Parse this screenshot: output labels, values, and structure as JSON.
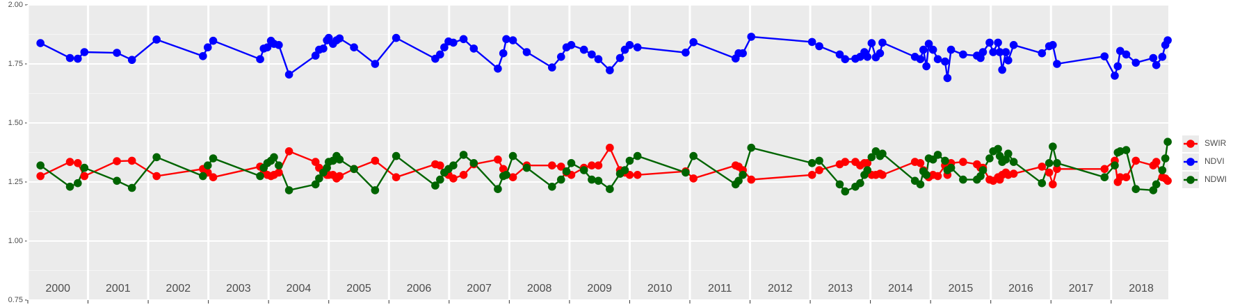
{
  "chart_data": {
    "type": "line",
    "x": [
      2000.21,
      2000.7,
      2000.83,
      2000.94,
      2001.48,
      2001.73,
      2002.14,
      2002.91,
      2002.99,
      2003.08,
      2003.86,
      2003.92,
      2003.98,
      2004.04,
      2004.09,
      2004.17,
      2004.34,
      2004.78,
      2004.84,
      2004.91,
      2004.97,
      2005.0,
      2005.07,
      2005.13,
      2005.18,
      2005.42,
      2005.77,
      2006.12,
      2006.77,
      2006.85,
      2006.92,
      2006.99,
      2007.07,
      2007.24,
      2007.41,
      2007.81,
      2007.9,
      2007.95,
      2008.06,
      2008.29,
      2008.71,
      2008.86,
      2008.95,
      2009.03,
      2009.24,
      2009.37,
      2009.48,
      2009.67,
      2009.84,
      2009.92,
      2010.0,
      2010.13,
      2010.93,
      2011.06,
      2011.76,
      2011.81,
      2011.88,
      2012.02,
      2013.03,
      2013.15,
      2013.49,
      2013.58,
      2013.75,
      2013.83,
      2013.9,
      2013.95,
      2014.02,
      2014.09,
      2014.16,
      2014.2,
      2014.74,
      2014.83,
      2014.88,
      2014.93,
      2014.97,
      2015.04,
      2015.12,
      2015.24,
      2015.28,
      2015.34,
      2015.54,
      2015.77,
      2015.83,
      2015.87,
      2015.98,
      2016.04,
      2016.12,
      2016.15,
      2016.19,
      2016.25,
      2016.29,
      2016.38,
      2016.85,
      2016.97,
      2017.03,
      2017.1,
      2017.89,
      2018.06,
      2018.11,
      2018.15,
      2018.25,
      2018.41,
      2018.7,
      2018.75,
      2018.85,
      2018.9,
      2018.94
    ],
    "series": [
      {
        "name": "SWIR",
        "color": "#ff0000",
        "values": [
          1.275,
          1.335,
          1.33,
          1.275,
          1.338,
          1.34,
          1.275,
          1.305,
          1.29,
          1.27,
          1.315,
          1.29,
          1.28,
          1.275,
          1.28,
          1.29,
          1.38,
          1.335,
          1.31,
          1.29,
          1.28,
          1.28,
          1.28,
          1.265,
          1.275,
          1.305,
          1.34,
          1.27,
          1.325,
          1.32,
          1.29,
          1.28,
          1.265,
          1.28,
          1.325,
          1.345,
          1.305,
          1.28,
          1.27,
          1.32,
          1.32,
          1.315,
          1.29,
          1.28,
          1.31,
          1.32,
          1.32,
          1.395,
          1.3,
          1.29,
          1.28,
          1.28,
          1.295,
          1.265,
          1.32,
          1.315,
          1.3,
          1.26,
          1.28,
          1.3,
          1.325,
          1.335,
          1.335,
          1.32,
          1.33,
          1.33,
          1.28,
          1.28,
          1.285,
          1.28,
          1.335,
          1.33,
          1.3,
          1.28,
          1.27,
          1.28,
          1.275,
          1.32,
          1.28,
          1.33,
          1.335,
          1.325,
          1.31,
          1.31,
          1.26,
          1.255,
          1.27,
          1.26,
          1.28,
          1.29,
          1.28,
          1.285,
          1.315,
          1.29,
          1.24,
          1.305,
          1.305,
          1.34,
          1.25,
          1.27,
          1.27,
          1.34,
          1.32,
          1.335,
          1.27,
          1.265,
          1.255
        ]
      },
      {
        "name": "NDVI",
        "color": "#0000ff",
        "values": [
          1.838,
          1.775,
          1.772,
          1.8,
          1.797,
          1.767,
          1.853,
          1.783,
          1.82,
          1.848,
          1.77,
          1.815,
          1.82,
          1.848,
          1.835,
          1.83,
          1.705,
          1.785,
          1.81,
          1.815,
          1.85,
          1.86,
          1.835,
          1.85,
          1.858,
          1.82,
          1.75,
          1.86,
          1.772,
          1.79,
          1.82,
          1.845,
          1.84,
          1.855,
          1.815,
          1.73,
          1.795,
          1.855,
          1.85,
          1.8,
          1.735,
          1.78,
          1.82,
          1.83,
          1.81,
          1.79,
          1.77,
          1.723,
          1.775,
          1.81,
          1.83,
          1.82,
          1.798,
          1.842,
          1.773,
          1.795,
          1.795,
          1.865,
          1.843,
          1.825,
          1.79,
          1.77,
          1.772,
          1.78,
          1.8,
          1.78,
          1.838,
          1.778,
          1.795,
          1.84,
          1.78,
          1.77,
          1.81,
          1.74,
          1.835,
          1.81,
          1.77,
          1.76,
          1.69,
          1.81,
          1.79,
          1.785,
          1.775,
          1.8,
          1.84,
          1.8,
          1.84,
          1.8,
          1.725,
          1.8,
          1.765,
          1.83,
          1.795,
          1.825,
          1.83,
          1.75,
          1.782,
          1.7,
          1.74,
          1.805,
          1.79,
          1.755,
          1.775,
          1.745,
          1.78,
          1.83,
          1.85
        ]
      },
      {
        "name": "NDWI",
        "color": "#006400",
        "values": [
          1.32,
          1.23,
          1.245,
          1.31,
          1.255,
          1.225,
          1.355,
          1.275,
          1.32,
          1.35,
          1.275,
          1.31,
          1.33,
          1.34,
          1.355,
          1.32,
          1.215,
          1.24,
          1.265,
          1.29,
          1.31,
          1.335,
          1.34,
          1.36,
          1.345,
          1.305,
          1.215,
          1.36,
          1.235,
          1.26,
          1.29,
          1.305,
          1.32,
          1.365,
          1.33,
          1.22,
          1.275,
          1.28,
          1.36,
          1.31,
          1.23,
          1.26,
          1.295,
          1.33,
          1.3,
          1.26,
          1.255,
          1.22,
          1.285,
          1.3,
          1.34,
          1.36,
          1.29,
          1.36,
          1.24,
          1.255,
          1.28,
          1.395,
          1.33,
          1.34,
          1.24,
          1.21,
          1.23,
          1.245,
          1.28,
          1.3,
          1.355,
          1.38,
          1.36,
          1.37,
          1.255,
          1.24,
          1.295,
          1.28,
          1.35,
          1.345,
          1.365,
          1.34,
          1.3,
          1.31,
          1.26,
          1.26,
          1.275,
          1.3,
          1.35,
          1.38,
          1.39,
          1.36,
          1.335,
          1.345,
          1.37,
          1.335,
          1.245,
          1.33,
          1.4,
          1.33,
          1.27,
          1.32,
          1.375,
          1.38,
          1.385,
          1.22,
          1.215,
          1.24,
          1.3,
          1.35,
          1.42
        ]
      }
    ],
    "xlim": [
      2000,
      2018.95
    ],
    "xticks": [
      2000,
      2001,
      2002,
      2003,
      2004,
      2005,
      2006,
      2007,
      2008,
      2009,
      2010,
      2011,
      2012,
      2013,
      2014,
      2015,
      2016,
      2017,
      2018
    ],
    "ylim": [
      0.75,
      2
    ],
    "yticks": [
      {
        "value": 0.75,
        "label": "0.75"
      },
      {
        "value": 1,
        "label": "1.00"
      },
      {
        "value": 1.25,
        "label": "1.25"
      },
      {
        "value": 1.5,
        "label": "1.50"
      },
      {
        "value": 1.75,
        "label": "1.75"
      },
      {
        "value": 2,
        "label": "2.00"
      }
    ],
    "grid": true,
    "legend": "right"
  }
}
